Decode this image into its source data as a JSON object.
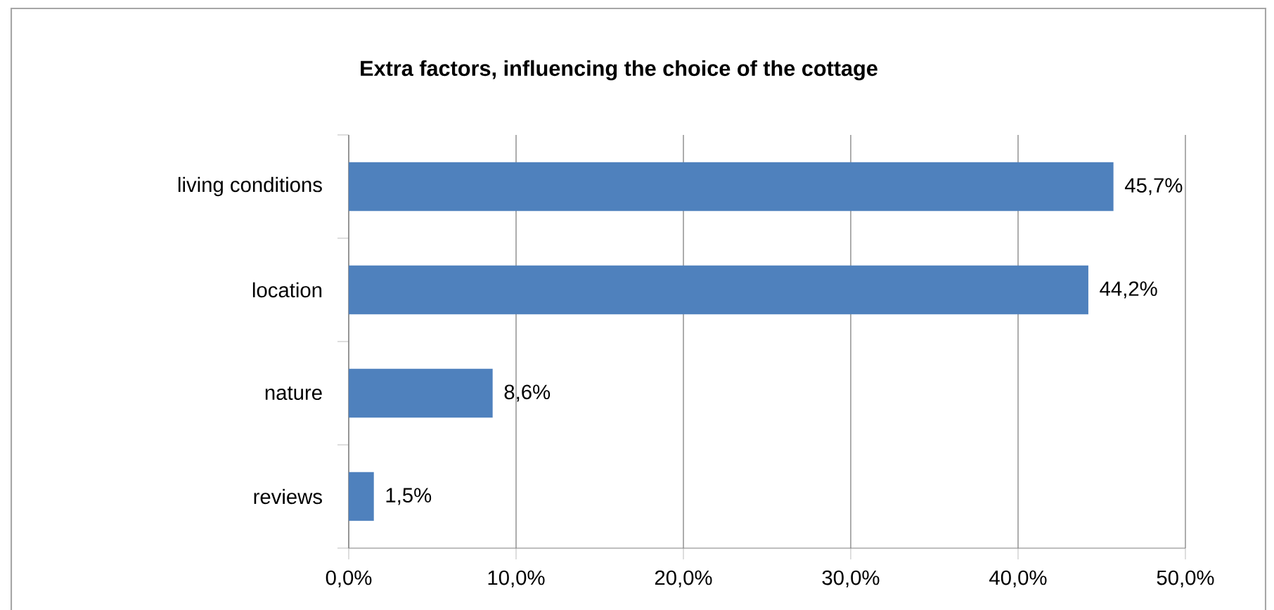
{
  "chart_data": {
    "type": "bar",
    "orientation": "horizontal",
    "title": "Extra factors, influencing  the choice of the cottage",
    "categories": [
      "living conditions",
      "location",
      "nature",
      "reviews"
    ],
    "values": [
      45.7,
      44.2,
      8.6,
      1.5
    ],
    "value_labels": [
      "45,7%",
      "44,2%",
      "8,6%",
      "1,5%"
    ],
    "color": "#4f81bd",
    "xlim": [
      0,
      50
    ],
    "xticks": [
      {
        "value": 0,
        "label": "0,0%"
      },
      {
        "value": 10,
        "label": "10,0%"
      },
      {
        "value": 20,
        "label": "20,0%"
      },
      {
        "value": 30,
        "label": "30,0%"
      },
      {
        "value": 40,
        "label": "40,0%"
      },
      {
        "value": 50,
        "label": "50,0%"
      }
    ],
    "grid": "x"
  }
}
